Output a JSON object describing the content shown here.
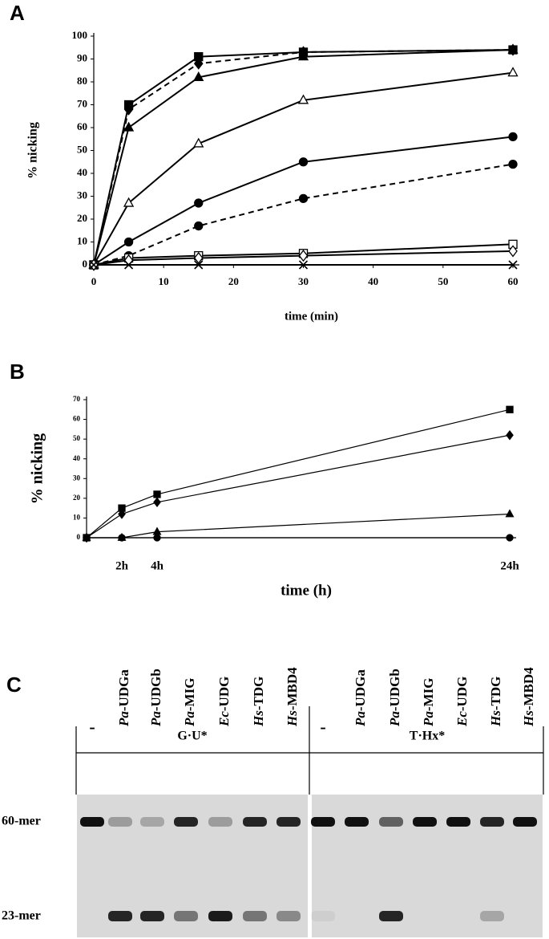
{
  "chart_data": [
    {
      "type": "line",
      "panel": "A",
      "ylabel": "% nicking",
      "xlabel": "time (min)",
      "xlim": [
        0,
        60
      ],
      "xticks": [
        0,
        10,
        20,
        30,
        40,
        50,
        60
      ],
      "ylim": [
        0,
        100
      ],
      "yticks": [
        0,
        10,
        20,
        30,
        40,
        50,
        60,
        70,
        80,
        90,
        100
      ],
      "x": [
        0,
        5,
        15,
        30,
        60
      ],
      "series": [
        {
          "color": "#000000",
          "marker": "square",
          "filled": true,
          "dashed": false,
          "values": [
            0,
            70,
            91,
            93,
            94
          ]
        },
        {
          "color": "#000000",
          "marker": "diamond",
          "filled": true,
          "dashed": true,
          "values": [
            0,
            68,
            88,
            93,
            94
          ]
        },
        {
          "color": "#000000",
          "marker": "triangle",
          "filled": true,
          "dashed": false,
          "values": [
            0,
            60,
            82,
            91,
            94
          ]
        },
        {
          "color": "#000000",
          "marker": "triangle",
          "filled": false,
          "dashed": false,
          "values": [
            0,
            27,
            53,
            72,
            84
          ]
        },
        {
          "color": "#000000",
          "marker": "circle",
          "filled": true,
          "dashed": false,
          "values": [
            0,
            10,
            27,
            45,
            56
          ]
        },
        {
          "color": "#000000",
          "marker": "circle",
          "filled": true,
          "dashed": true,
          "values": [
            0,
            4,
            17,
            29,
            44
          ]
        },
        {
          "color": "#000000",
          "marker": "square",
          "filled": false,
          "dashed": false,
          "values": [
            0,
            3,
            4,
            5,
            9
          ]
        },
        {
          "color": "#000000",
          "marker": "diamond",
          "filled": false,
          "dashed": false,
          "values": [
            0,
            2,
            3,
            4,
            6
          ]
        },
        {
          "color": "#000000",
          "marker": "cross",
          "filled": true,
          "dashed": false,
          "values": [
            0,
            0,
            0,
            0,
            0
          ]
        }
      ]
    },
    {
      "type": "line",
      "panel": "B",
      "ylabel": "% nicking",
      "xlabel": "time (h)",
      "xlim": [
        0,
        24
      ],
      "xticks": [
        {
          "value": 2,
          "label": "2h"
        },
        {
          "value": 4,
          "label": "4h"
        },
        {
          "value": 24,
          "label": "24h"
        }
      ],
      "ylim": [
        0,
        70
      ],
      "yticks": [
        0,
        10,
        20,
        30,
        40,
        50,
        60,
        70
      ],
      "x": [
        0,
        2,
        4,
        24
      ],
      "series": [
        {
          "color": "#000000",
          "marker": "square",
          "filled": true,
          "dashed": false,
          "values": [
            0,
            15,
            22,
            65
          ]
        },
        {
          "color": "#000000",
          "marker": "diamond",
          "filled": true,
          "dashed": false,
          "values": [
            0,
            12,
            18,
            52
          ]
        },
        {
          "color": "#000000",
          "marker": "triangle",
          "filled": true,
          "dashed": false,
          "values": [
            0,
            0,
            3,
            12
          ]
        },
        {
          "color": "#000000",
          "marker": "circle",
          "filled": true,
          "dashed": false,
          "values": [
            0,
            0,
            0,
            0
          ]
        }
      ]
    }
  ],
  "gel": {
    "panel": "C",
    "rows": [
      "60-mer",
      "23-mer"
    ],
    "groups": [
      {
        "label": "G·U*",
        "lanes": [
          {
            "label": "-"
          },
          {
            "species": "Pa",
            "enzyme": "-UDGa"
          },
          {
            "species": "Pa",
            "enzyme": "-UDGb"
          },
          {
            "species": "Pa",
            "enzyme": "-MIG"
          },
          {
            "species": "Ec",
            "enzyme": "-UDG"
          },
          {
            "species": "Hs",
            "enzyme": "-TDG"
          },
          {
            "species": "Hs",
            "enzyme": "-MBD4"
          }
        ]
      },
      {
        "label": "T·Hx*",
        "lanes": [
          {
            "label": "-"
          },
          {
            "species": "Pa",
            "enzyme": "-UDGa"
          },
          {
            "species": "Pa",
            "enzyme": "-UDGb"
          },
          {
            "species": "Pa",
            "enzyme": "-MIG"
          },
          {
            "species": "Ec",
            "enzyme": "-UDG"
          },
          {
            "species": "Hs",
            "enzyme": "-TDG"
          },
          {
            "species": "Hs",
            "enzyme": "-MBD4"
          }
        ]
      }
    ]
  }
}
